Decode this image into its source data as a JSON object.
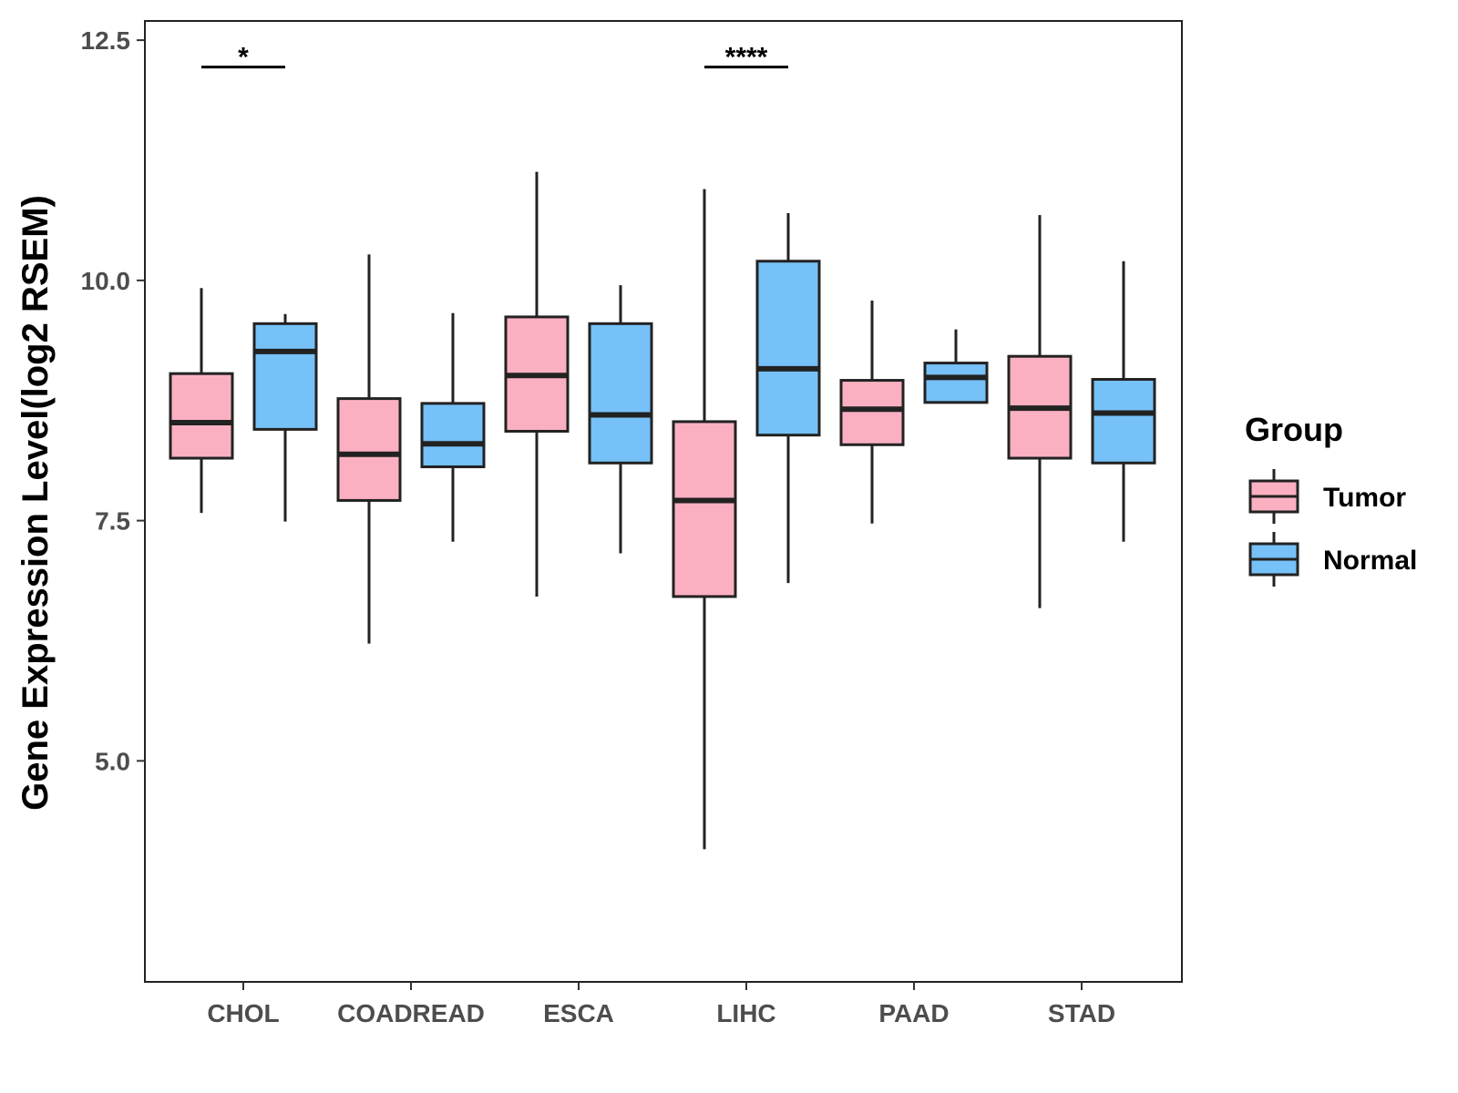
{
  "chart_data": {
    "type": "boxplot",
    "title": "",
    "xlabel": "",
    "ylabel": "Gene Expression Level(log2 RSEM)",
    "ylim": [
      2.7,
      12.7
    ],
    "yticks": [
      5.0,
      7.5,
      10.0,
      12.5
    ],
    "ytick_labels": [
      "5.0",
      "7.5",
      "10.0",
      "12.5"
    ],
    "categories": [
      "CHOL",
      "COADREAD",
      "ESCA",
      "LIHC",
      "PAAD",
      "STAD"
    ],
    "legend": {
      "title": "Group",
      "position": "right",
      "entries": [
        {
          "name": "Tumor",
          "color": "#fbb0c2"
        },
        {
          "name": "Normal",
          "color": "#76c1f8"
        }
      ]
    },
    "series": [
      {
        "name": "Tumor",
        "color": "#fbb0c2",
        "boxes": [
          {
            "category": "CHOL",
            "min": 7.58,
            "q1": 8.15,
            "median": 8.52,
            "q3": 9.03,
            "max": 9.92
          },
          {
            "category": "COADREAD",
            "min": 6.22,
            "q1": 7.71,
            "median": 8.19,
            "q3": 8.77,
            "max": 10.27
          },
          {
            "category": "ESCA",
            "min": 6.71,
            "q1": 8.43,
            "median": 9.01,
            "q3": 9.62,
            "max": 11.13
          },
          {
            "category": "LIHC",
            "min": 4.08,
            "q1": 6.71,
            "median": 7.71,
            "q3": 8.53,
            "max": 10.95
          },
          {
            "category": "PAAD",
            "min": 7.47,
            "q1": 8.29,
            "median": 8.66,
            "q3": 8.96,
            "max": 9.79
          },
          {
            "category": "STAD",
            "min": 6.59,
            "q1": 8.15,
            "median": 8.67,
            "q3": 9.21,
            "max": 10.68
          }
        ]
      },
      {
        "name": "Normal",
        "color": "#76c1f8",
        "boxes": [
          {
            "category": "CHOL",
            "min": 7.49,
            "q1": 8.45,
            "median": 9.26,
            "q3": 9.55,
            "max": 9.65
          },
          {
            "category": "COADREAD",
            "min": 7.28,
            "q1": 8.06,
            "median": 8.3,
            "q3": 8.72,
            "max": 9.66
          },
          {
            "category": "ESCA",
            "min": 7.16,
            "q1": 8.1,
            "median": 8.6,
            "q3": 9.55,
            "max": 9.95
          },
          {
            "category": "LIHC",
            "min": 6.85,
            "q1": 8.39,
            "median": 9.08,
            "q3": 10.2,
            "max": 10.7
          },
          {
            "category": "PAAD",
            "min": 8.73,
            "q1": 8.73,
            "median": 8.99,
            "q3": 9.14,
            "max": 9.49
          },
          {
            "category": "STAD",
            "min": 7.28,
            "q1": 8.1,
            "median": 8.62,
            "q3": 8.97,
            "max": 10.2
          }
        ]
      }
    ],
    "annotations": [
      {
        "category": "CHOL",
        "label": "*",
        "y": 12.22
      },
      {
        "category": "LIHC",
        "label": "****",
        "y": 12.22
      }
    ],
    "grid": false
  }
}
